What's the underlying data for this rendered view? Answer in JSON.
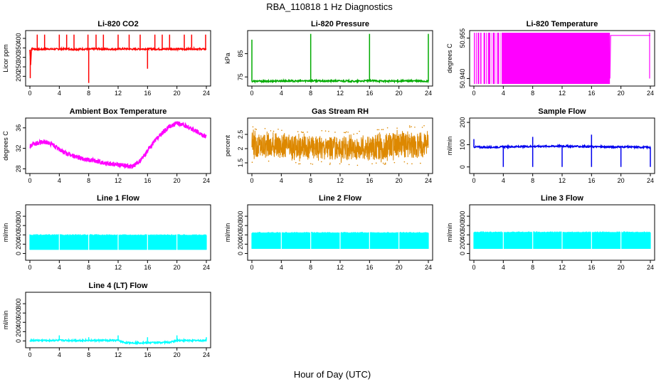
{
  "figure": {
    "title": "RBA_110818  1 Hz Diagnostics",
    "xlabel": "Hour of Day (UTC)"
  },
  "chart_data": [
    {
      "type": "line",
      "title": "Li-820 CO2",
      "ylabel": "Licor ppm",
      "color": "#ff0000",
      "xlim": [
        0,
        24
      ],
      "ylim": [
        160,
        430
      ],
      "xticks": [
        0,
        4,
        8,
        12,
        16,
        20,
        24
      ],
      "yticks": [
        200,
        250,
        300,
        350,
        400
      ],
      "series": [
        {
          "x": [
            0,
            0.1,
            0.2,
            0.5,
            1,
            1.5,
            2,
            2.5,
            3,
            4,
            5,
            6,
            7,
            8,
            9,
            10,
            11,
            12,
            13,
            14,
            15,
            16,
            17,
            18,
            19,
            20,
            21,
            22,
            23,
            24
          ],
          "y": [
            340,
            260,
            345,
            345,
            343,
            342,
            344,
            345,
            343,
            344,
            345,
            342,
            344,
            343,
            345,
            344,
            343,
            344,
            345,
            343,
            344,
            345,
            344,
            343,
            345,
            344,
            343,
            345,
            344,
            343
          ]
        }
      ],
      "spikes": [
        {
          "x": 0.05,
          "y": 190
        },
        {
          "x": 1.0,
          "y": 420
        },
        {
          "x": 2.0,
          "y": 420
        },
        {
          "x": 4.0,
          "y": 420
        },
        {
          "x": 5.0,
          "y": 420
        },
        {
          "x": 6.0,
          "y": 420
        },
        {
          "x": 7.9,
          "y": 420
        },
        {
          "x": 8.0,
          "y": 165
        },
        {
          "x": 9.0,
          "y": 420
        },
        {
          "x": 10.0,
          "y": 420
        },
        {
          "x": 12.0,
          "y": 420
        },
        {
          "x": 13.5,
          "y": 420
        },
        {
          "x": 15.0,
          "y": 420
        },
        {
          "x": 16.0,
          "y": 240
        },
        {
          "x": 17.0,
          "y": 420
        },
        {
          "x": 18.0,
          "y": 420
        },
        {
          "x": 19.0,
          "y": 420
        },
        {
          "x": 21.0,
          "y": 420
        },
        {
          "x": 22.0,
          "y": 420
        },
        {
          "x": 23.9,
          "y": 420
        }
      ]
    },
    {
      "type": "line",
      "title": "Li-820 Pressure",
      "ylabel": "kPa",
      "color": "#00aa00",
      "xlim": [
        0,
        24
      ],
      "ylim": [
        72,
        94
      ],
      "xticks": [
        0,
        4,
        8,
        12,
        16,
        20,
        24
      ],
      "yticks": [
        75,
        85
      ],
      "series": [
        {
          "x": [
            0,
            2,
            4,
            6,
            8,
            10,
            12,
            14,
            16,
            18,
            20,
            22,
            24
          ],
          "y": [
            73.2,
            73.1,
            73.3,
            73.2,
            73.4,
            73.2,
            73.3,
            73.1,
            73.4,
            73.2,
            73.2,
            73.3,
            73.1
          ]
        }
      ],
      "spikes": [
        {
          "x": 0.0,
          "y": 91
        },
        {
          "x": 8.0,
          "y": 93.5
        },
        {
          "x": 16.0,
          "y": 93.5
        },
        {
          "x": 24.0,
          "y": 93.5
        }
      ]
    },
    {
      "type": "line",
      "title": "Li-820 Temperature",
      "ylabel": "degrees C",
      "color": "#ff00ff",
      "xlim": [
        0,
        24
      ],
      "ylim": [
        50.938,
        50.957
      ],
      "xticks": [
        0,
        4,
        8,
        12,
        16,
        20,
        24
      ],
      "yticks": [
        50.94,
        50.955
      ],
      "ytick_labels": [
        "50.940",
        "50.955"
      ],
      "filled_range": [
        0,
        18.5
      ],
      "series": [
        {
          "x": [
            18.5,
            18.6,
            24
          ],
          "y": [
            50.94,
            50.956,
            50.956
          ]
        }
      ],
      "switch_lines": [
        23.9
      ]
    },
    {
      "type": "line",
      "title": "Ambient Box Temperature",
      "ylabel": "degrees C",
      "color": "#ff00ff",
      "xlim": [
        0,
        24
      ],
      "ylim": [
        27.5,
        37.5
      ],
      "xticks": [
        0,
        4,
        8,
        12,
        16,
        20,
        24
      ],
      "yticks": [
        28,
        32,
        36
      ],
      "series": [
        {
          "x": [
            0,
            1,
            2,
            3,
            4,
            5,
            6,
            7,
            8,
            9,
            10,
            11,
            12,
            13,
            14,
            15,
            16,
            17,
            18,
            19,
            20,
            21,
            22,
            23,
            24
          ],
          "y": [
            32.5,
            33.0,
            33.3,
            32.8,
            31.8,
            31.0,
            30.5,
            30.0,
            29.8,
            29.5,
            29.2,
            29.0,
            28.8,
            28.6,
            28.5,
            29.5,
            31.5,
            33.5,
            35.0,
            36.3,
            36.9,
            36.5,
            35.8,
            35.0,
            34.3
          ]
        }
      ],
      "band_width": 0.9
    },
    {
      "type": "line",
      "title": "Gas Stream RH",
      "ylabel": "percent",
      "color": "#dd8800",
      "xlim": [
        0,
        24
      ],
      "ylim": [
        1.2,
        3.0
      ],
      "xticks": [
        0,
        4,
        8,
        12,
        16,
        20,
        24
      ],
      "yticks": [
        1.5,
        2.0,
        2.5
      ],
      "ytick_labels": [
        "1.5",
        "2",
        "2.5"
      ],
      "band_low": [
        1.6,
        1.6,
        1.6,
        1.55,
        1.55,
        1.55,
        1.5,
        1.5,
        1.5,
        1.5,
        1.55,
        1.55,
        1.55
      ],
      "band_high": [
        2.7,
        2.6,
        2.6,
        2.55,
        2.55,
        2.55,
        2.5,
        2.5,
        2.55,
        2.65,
        2.7,
        2.7,
        2.75
      ],
      "band_x": [
        0,
        2,
        4,
        6,
        8,
        10,
        12,
        14,
        16,
        18,
        20,
        22,
        24
      ]
    },
    {
      "type": "line",
      "title": "Sample Flow",
      "ylabel": "ml/min",
      "color": "#0000ee",
      "xlim": [
        0,
        24
      ],
      "ylim": [
        -20,
        210
      ],
      "xticks": [
        0,
        4,
        8,
        12,
        16,
        20,
        24
      ],
      "yticks": [
        0,
        100,
        200
      ],
      "series": [
        {
          "x": [
            0,
            2,
            4,
            6,
            8,
            10,
            12,
            14,
            16,
            18,
            20,
            22,
            24
          ],
          "y": [
            90,
            88,
            90,
            91,
            92,
            93,
            94,
            92,
            91,
            90,
            90,
            89,
            88
          ]
        }
      ],
      "spikes": [
        {
          "x": 0.0,
          "y": 125
        },
        {
          "x": 4.0,
          "y": 0
        },
        {
          "x": 8.0,
          "y": 135
        },
        {
          "x": 8.0,
          "y": 0
        },
        {
          "x": 12.0,
          "y": 0
        },
        {
          "x": 16.0,
          "y": 145
        },
        {
          "x": 16.0,
          "y": 0
        },
        {
          "x": 20.0,
          "y": 0
        },
        {
          "x": 24.0,
          "y": 0
        }
      ]
    },
    {
      "type": "area",
      "title": "Line 1 Flow",
      "ylabel": "ml/min",
      "color": "#00ffff",
      "xlim": [
        0,
        24
      ],
      "ylim": [
        -100,
        1000
      ],
      "xticks": [
        0,
        4,
        8,
        12,
        16,
        20,
        24
      ],
      "yticks": [
        0,
        200,
        400,
        600,
        800
      ],
      "band_low": 80,
      "band_high": 400
    },
    {
      "type": "area",
      "title": "Line 2 Flow",
      "ylabel": "ml/min",
      "color": "#00ffff",
      "xlim": [
        0,
        24
      ],
      "ylim": [
        -100,
        1000
      ],
      "xticks": [
        0,
        4,
        8,
        12,
        16,
        20,
        24
      ],
      "yticks": [
        0,
        200,
        400,
        600,
        800
      ],
      "band_low": 100,
      "band_high": 450
    },
    {
      "type": "area",
      "title": "Line 3 Flow",
      "ylabel": "ml/min",
      "color": "#00ffff",
      "xlim": [
        0,
        24
      ],
      "ylim": [
        -100,
        1000
      ],
      "xticks": [
        0,
        4,
        8,
        12,
        16,
        20,
        24
      ],
      "yticks": [
        0,
        200,
        400,
        600,
        800
      ],
      "band_low": 100,
      "band_high": 460
    },
    {
      "type": "line",
      "title": "Line 4 (LT) Flow",
      "ylabel": "ml/min",
      "color": "#00ffff",
      "xlim": [
        0,
        24
      ],
      "ylim": [
        -100,
        1000
      ],
      "xticks": [
        0,
        4,
        8,
        12,
        16,
        20,
        24
      ],
      "yticks": [
        0,
        200,
        400,
        600,
        800
      ],
      "series": [
        {
          "x": [
            0,
            4,
            8,
            12,
            13,
            16,
            19,
            20,
            24
          ],
          "y": [
            10,
            10,
            10,
            10,
            -40,
            -40,
            -30,
            10,
            10
          ]
        }
      ],
      "spikes": [
        {
          "x": 4.0,
          "y": 120
        },
        {
          "x": 8.0,
          "y": 80
        },
        {
          "x": 12.0,
          "y": 120
        },
        {
          "x": 16.0,
          "y": 80
        },
        {
          "x": 20.0,
          "y": 120
        },
        {
          "x": 24.0,
          "y": 80
        }
      ]
    }
  ]
}
